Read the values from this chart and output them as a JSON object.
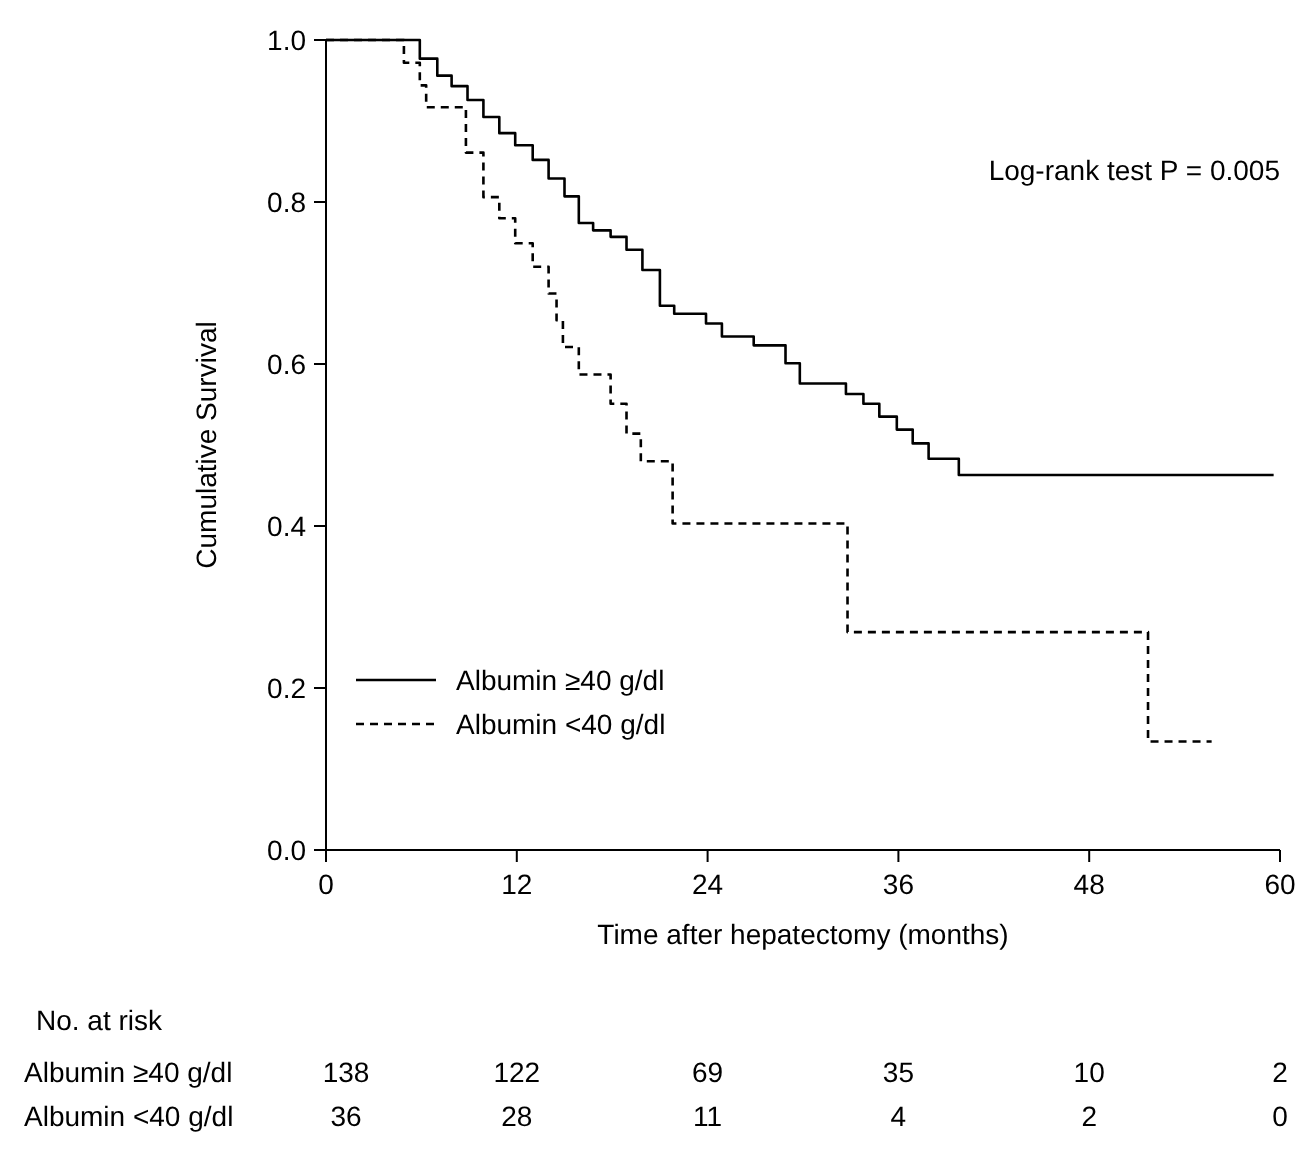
{
  "chart_data": {
    "type": "step",
    "xlabel": "Time after hepatectomy (months)",
    "ylabel": "Cumulative Survival",
    "xlim": [
      0,
      60
    ],
    "xticks": [
      0,
      12,
      24,
      36,
      48,
      60
    ],
    "ylim": [
      0,
      1
    ],
    "yticks": [
      {
        "value": 0,
        "label": "0.0"
      },
      {
        "value": 0.2,
        "label": "0.2"
      },
      {
        "value": 0.4,
        "label": "0.4"
      },
      {
        "value": 0.6,
        "label": "0.6"
      },
      {
        "value": 0.8,
        "label": "0.8"
      },
      {
        "value": 1,
        "label": "1.0"
      }
    ],
    "grid": false,
    "legend": "bottom left",
    "marker": "none",
    "series": [
      {
        "name": "Albumin ≥40 g/dl",
        "color": "#000000",
        "line_style": "solid",
        "x": [
          0,
          5.9,
          7.0,
          7.9,
          8.9,
          9.9,
          10.9,
          11.9,
          13.0,
          14.0,
          15.0,
          15.9,
          16.8,
          17.9,
          18.9,
          19.9,
          21.0,
          21.9,
          23.9,
          24.9,
          26.9,
          28.9,
          29.8,
          32.7,
          33.8,
          34.8,
          35.9,
          36.9,
          37.9,
          39.8,
          59.6
        ],
        "values": [
          1,
          0.977,
          0.956,
          0.943,
          0.926,
          0.905,
          0.885,
          0.87,
          0.852,
          0.829,
          0.807,
          0.774,
          0.765,
          0.757,
          0.741,
          0.716,
          0.672,
          0.662,
          0.65,
          0.634,
          0.623,
          0.601,
          0.576,
          0.563,
          0.551,
          0.535,
          0.519,
          0.502,
          0.483,
          0.463,
          0.463
        ]
      },
      {
        "name": "Albumin <40 g/dl",
        "color": "#000000",
        "line_style": "dashed",
        "x": [
          0,
          4.9,
          5.9,
          6.3,
          8.8,
          9.9,
          10.9,
          11.9,
          13.0,
          14.0,
          14.5,
          14.9,
          15.9,
          17.9,
          18.9,
          19.8,
          21.8,
          32.8,
          51.7,
          55.7
        ],
        "values": [
          1,
          0.972,
          0.944,
          0.917,
          0.861,
          0.806,
          0.78,
          0.749,
          0.72,
          0.687,
          0.654,
          0.621,
          0.587,
          0.551,
          0.514,
          0.48,
          0.403,
          0.269,
          0.134,
          0.134
        ]
      }
    ],
    "annotations": [
      "Log-rank test P = 0.005",
      "No. at risk",
      "Albumin ≥40 g/dl",
      "138 122 69 35 10 2",
      "Albumin <40 g/dl",
      "36 28 11 4 2 0"
    ]
  }
}
